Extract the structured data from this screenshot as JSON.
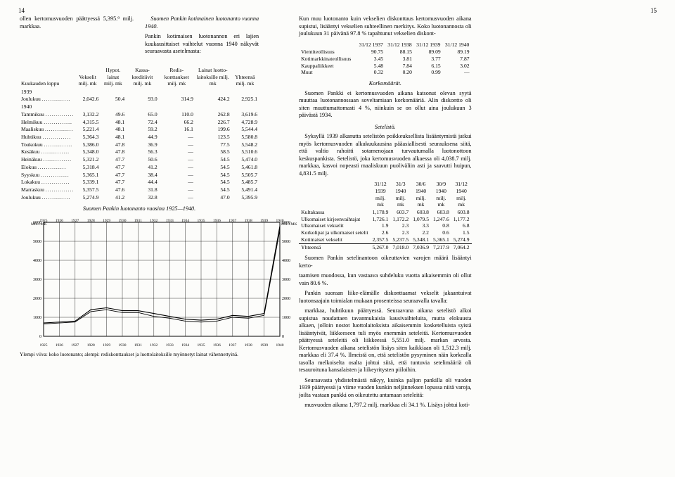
{
  "page_left_no": "14",
  "page_right_no": "15",
  "left": {
    "intro_a": "ollen kertomusvuoden päättyessä 5,395.⁹ milj. markkaa.",
    "intro_b": "Pankin kotimaisen luotonannon eri lajien kuukausittaiset vaihtelut vuonna 1940 näkyvät seuraavasta asetelmasta:",
    "table1_title": "Suomen Pankin kotimainen luotonanto vuonna 1940.",
    "table1_headers": [
      "Kuukauden loppu",
      "Vekselit milj. mk",
      "Hypot. lainat milj. mk",
      "Kassa-kreditiivit milj. mk",
      "Redis-konttaukset milj. mk",
      "Lainat luotto-laitoksille milj. mk",
      "Yhteensä milj. mk"
    ],
    "table1_rows": [
      [
        "1939",
        "",
        "",
        "",
        "",
        "",
        ""
      ],
      [
        "Joulukuu",
        "2,042.6",
        "50.4",
        "93.0",
        "314.9",
        "424.2",
        "2,925.1"
      ],
      [
        "1940",
        "",
        "",
        "",
        "",
        "",
        ""
      ],
      [
        "Tammikuu",
        "3,132.2",
        "49.6",
        "65.0",
        "110.0",
        "262.8",
        "3,619.6"
      ],
      [
        "Helmikuu",
        "4,315.5",
        "48.1",
        "72.4",
        "66.2",
        "226.7",
        "4,728.9"
      ],
      [
        "Maaliskuu",
        "5,221.4",
        "48.1",
        "59.2",
        "16.1",
        "199.6",
        "5,544.4"
      ],
      [
        "Huhtikuu",
        "5,364.3",
        "48.1",
        "44.9",
        "—",
        "123.5",
        "5,580.8"
      ],
      [
        "Toukokuu",
        "5,386.0",
        "47.8",
        "36.9",
        "—",
        "77.5",
        "5,548.2"
      ],
      [
        "Kesäkuu",
        "5,348.0",
        "47.8",
        "56.3",
        "—",
        "58.5",
        "5,510.6"
      ],
      [
        "Heinäkuu",
        "5,321.2",
        "47.7",
        "50.6",
        "—",
        "54.5",
        "5,474.0"
      ],
      [
        "Elokuu",
        "5,318.4",
        "47.7",
        "41.2",
        "—",
        "54.5",
        "5,461.8"
      ],
      [
        "Syyskuu",
        "5,365.1",
        "47.7",
        "38.4",
        "—",
        "54.5",
        "5,505.7"
      ],
      [
        "Lokakuu",
        "5,339.1",
        "47.7",
        "44.4",
        "—",
        "54.5",
        "5,485.7"
      ],
      [
        "Marraskuu",
        "5,357.5",
        "47.6",
        "31.8",
        "—",
        "54.5",
        "5,491.4"
      ],
      [
        "Joulukuu",
        "5,274.9",
        "41.2",
        "32.8",
        "—",
        "47.0",
        "5,395.9"
      ]
    ],
    "chart_title": "Suomen Pankin luotonanto vuosina 1925—1940.",
    "chart": {
      "type": "line",
      "years": [
        1925,
        1926,
        1927,
        1928,
        1929,
        1930,
        1931,
        1932,
        1933,
        1934,
        1935,
        1936,
        1937,
        1938,
        1939,
        1940
      ],
      "ylim": [
        0,
        6000
      ],
      "ytick_step": 1000,
      "upper": [
        700,
        750,
        800,
        1400,
        1500,
        1350,
        1350,
        1200,
        1050,
        900,
        850,
        900,
        1100,
        1050,
        1200,
        5800
      ],
      "lower": [
        650,
        700,
        750,
        1300,
        1400,
        1250,
        1250,
        1050,
        950,
        800,
        750,
        800,
        1000,
        950,
        1100,
        5600
      ],
      "grid_color": "#000",
      "background_color": "#fcfcfa",
      "line_color": "#000",
      "line_width": 1.1
    },
    "caption": "Ylempi viiva: koko luotonanto; alempi: rediskonttaukset ja luottolaitoksille myönnetyt lainat vähennettyinä."
  },
  "right": {
    "p1": "Kun muu luotonanto kuin vekselien diskonttaus kertomusvuoden aikana supistui, lisääntyi vekselien suhteellinen merkitys. Koko luotonannosta oli joulukuun 31 päivänä 97.8 % tapahtunut vekselien diskont-",
    "p1b": "taamisen muodossa, kun vastaava suhdeluku vuotta aikaisemmin oli ollut vain 80.6 %.",
    "p2": "Pankin suoraan liike-elämälle diskonttaamat vekselit jakaantuivat luotonsaajain toimialan mukaan prosenteissa seuraavalla tavalla:",
    "percent_headers": [
      "",
      "31/12 1937",
      "31/12 1938",
      "31/12 1939",
      "31/12 1940"
    ],
    "percent_rows": [
      [
        "Vientiteollisuus",
        "90.75",
        "88.15",
        "89.09",
        "89.19"
      ],
      [
        "Kotimarkkinateollisuus",
        "3.45",
        "3.81",
        "3.77",
        "7.87"
      ],
      [
        "Kauppaliikkeet",
        "5.48",
        "7.84",
        "6.15",
        "3.02"
      ],
      [
        "Muut",
        "0.32",
        "0.20",
        "0.99",
        "—"
      ]
    ],
    "h_korko": "Korkomäärät.",
    "p3": "Suomen Pankki ei kertomusvuoden aikana katsonut olevan syytä muuttaa luotonannossaan soveltamiaan korkomääriä. Alin diskontto oli siten muuttumattomasti 4 %, niinkuin se on ollut aina joulukuun 3 päivästä 1934.",
    "h_setel": "Setelistö.",
    "p4": "Syksyllä 1939 alkanutta setelistön poikkeuksellista lisääntymistä jatkui myös kertomusvuoden alkukuukausina pääasiallisesti seurauksena siitä, että valtio rahoitti sotamenojaan turvautumalla luotonottoon keskuspankista. Setelistö, joka kertomusvuoden alkaessa oli 4,038.7 milj. markkaa, kasvoi nopeasti maaliskuun puoliväliin asti ja saavutti huipun, 4,831.5 milj.",
    "p4b": "markkaa, huhtikuun päättyessä. Seuraavana aikana setelistö alkoi supistua noudattaen tavanmukaisia kausivaihteluita, mutta elokuusta alkaen, jolloin nostot luottolaitoksista aikaisemmin kosketelluista syistä lisääntyivät, liikkeeseen tuli myös enemmän seteleitä. Kertomusvuoden päättyessä seteleitä oli liikkeessä 5,551.0 milj. markan arvosta. Kertomusvuoden aikana setelistön lisäys siten kaikkiaan oli 1,512.3 milj. markkaa eli 37.4 %. Ilmeistä on, että setelistön pysyminen näin korkealla tasolla melkoiselta osalta johtui siitä, että tuntuvia setelimääriä oli tesauroituna kansalaisten ja liikeyritysten piiloihin.",
    "p5": "Seuraavasta yhdistelmästä näkyy, kuinka paljon pankilla oli vuoden 1939 päättyessä ja viime vuoden kunkin neljänneksen lopussa niitä varoja, joilta vastaan pankki on oikeutettu antamaan seteleitä:",
    "cover_headers": [
      "",
      "31/12 1939 milj. mk",
      "31/3 1940 milj. mk",
      "30/6 1940 milj. mk",
      "30/9 1940 milj. mk",
      "31/12 1940 milj. mk"
    ],
    "cover_rows": [
      [
        "Kultakassa",
        "1,178.9",
        "603.7",
        "603.8",
        "603.8",
        "603.8"
      ],
      [
        "Ulkomaiset kirjeenvaihtajat",
        "1,726.1",
        "1,172.2",
        "1,079.5",
        "1,247.6",
        "1,177.2"
      ],
      [
        "Ulkomaiset vekselit",
        "1.9",
        "2.3",
        "3.3",
        "0.8",
        "6.8"
      ],
      [
        "Korkolipat ja ulkomaiset setelit",
        "2.6",
        "2.3",
        "2.2",
        "0.6",
        "1.5"
      ],
      [
        "Kotimaiset vekselit",
        "2,357.5",
        "5,237.5",
        "5,348.1",
        "5,365.1",
        "5,274.9"
      ]
    ],
    "cover_total": [
      "Yhteensä",
      "5,267.0",
      "7,018.0",
      "7,036.9",
      "7,217.9",
      "7,064.2"
    ],
    "p6": "Suomen Pankin setelinantoon oikeuttavien varojen määrä lisääntyi kerto-",
    "p6b": "musvuoden aikana 1,797.2 milj. markkaa eli 34.1 %. Lisäys johtui koti-"
  }
}
